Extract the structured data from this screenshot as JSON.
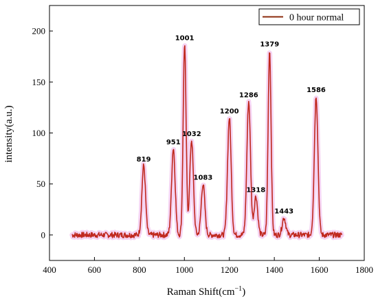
{
  "chart_data": {
    "type": "line",
    "title": "",
    "xlabel": "Raman Shift",
    "xlabel_unit": "cm",
    "xlabel_unit_sup": "−1",
    "ylabel": "intensity(a.u.)",
    "xlim": [
      400,
      1800
    ],
    "ylim": [
      -25,
      225
    ],
    "xticks": [
      400,
      600,
      800,
      1000,
      1200,
      1400,
      1600,
      1800
    ],
    "yticks": [
      0,
      50,
      100,
      150,
      200
    ],
    "grid": false,
    "legend_position": "top-right",
    "series": [
      {
        "name": "0 hour normal",
        "color": "#c0281e",
        "x_range": [
          500,
          1700
        ],
        "peaks": [
          {
            "x": 819,
            "y": 68
          },
          {
            "x": 951,
            "y": 85
          },
          {
            "x": 1001,
            "y": 187
          },
          {
            "x": 1032,
            "y": 93
          },
          {
            "x": 1083,
            "y": 50
          },
          {
            "x": 1200,
            "y": 115
          },
          {
            "x": 1286,
            "y": 131
          },
          {
            "x": 1318,
            "y": 38
          },
          {
            "x": 1379,
            "y": 181
          },
          {
            "x": 1443,
            "y": 17
          },
          {
            "x": 1586,
            "y": 136
          }
        ]
      }
    ],
    "annotations": [
      "819",
      "951",
      "1001",
      "1032",
      "1083",
      "1200",
      "1286",
      "1318",
      "1379",
      "1443",
      "1586"
    ],
    "colors": {
      "line": "#c0281e",
      "shadow": "#f2c4ee",
      "legend_line": "#8b2b0c"
    }
  }
}
